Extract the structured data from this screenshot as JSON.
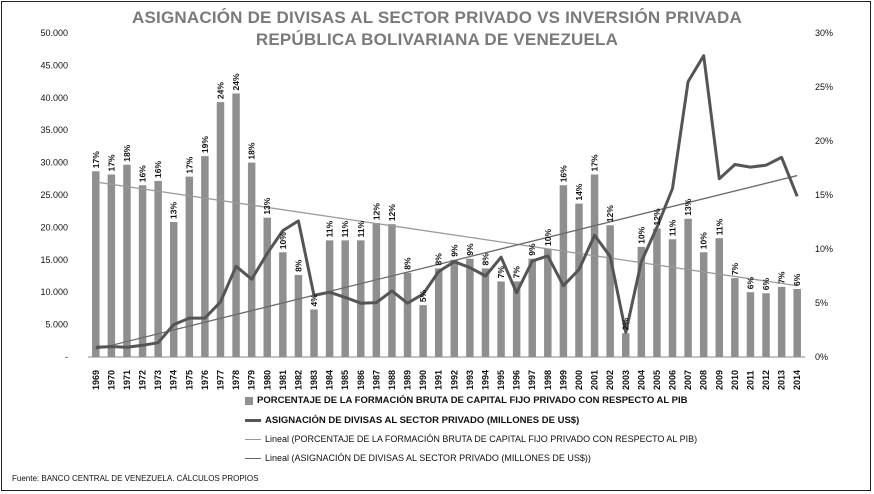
{
  "title_line1": "ASIGNACIÓN DE DIVISAS AL SECTOR PRIVADO VS INVERSIÓN PRIVADA",
  "title_line2": "REPÚBLICA BOLIVARIANA DE VENEZUELA",
  "source": "Fuente: BANCO CENTRAL DE VENEZUELA.  CÁLCULOS PROPIOS",
  "colors": {
    "bars": "#8f8f8f",
    "line": "#555555",
    "trend_bars": "#9a9a9a",
    "trend_line": "#6a6a6a"
  },
  "chart_data": {
    "type": "bar",
    "categories": [
      "1969",
      "1970",
      "1971",
      "1972",
      "1973",
      "1974",
      "1975",
      "1976",
      "1977",
      "1978",
      "1979",
      "1980",
      "1981",
      "1982",
      "1983",
      "1984",
      "1985",
      "1986",
      "1987",
      "1988",
      "1989",
      "1990",
      "1991",
      "1992",
      "1993",
      "1994",
      "1995",
      "1996",
      "1997",
      "1998",
      "1999",
      "2000",
      "2001",
      "2002",
      "2003",
      "2004",
      "2005",
      "2006",
      "2007",
      "2008",
      "2009",
      "2010",
      "2011",
      "2012",
      "2013",
      "2014"
    ],
    "left_axis": {
      "min": 0,
      "max": 50000,
      "ticks": [
        "-",
        "5.000",
        "10.000",
        "15.000",
        "20.000",
        "25.000",
        "30.000",
        "35.000",
        "40.000",
        "45.000",
        "50.000"
      ]
    },
    "right_axis": {
      "min": 0,
      "max": 30,
      "unit": "%",
      "ticks": [
        "0%",
        "5%",
        "10%",
        "15%",
        "20%",
        "25%",
        "30%"
      ]
    },
    "series": [
      {
        "name": "PORCENTAJE DE LA FORMACIÓN BRUTA DE CAPITAL FIJO PRIVADO CON RESPECTO AL PIB",
        "kind": "bar",
        "axis": "right",
        "values": [
          17.2,
          16.9,
          17.8,
          15.9,
          16.3,
          12.5,
          16.7,
          18.6,
          23.6,
          24.4,
          18.0,
          12.9,
          9.7,
          7.6,
          4.4,
          10.8,
          10.8,
          10.8,
          12.4,
          12.3,
          7.8,
          4.8,
          8.2,
          9.0,
          9.1,
          8.2,
          7.0,
          7.0,
          9.1,
          10.0,
          15.9,
          14.2,
          16.9,
          12.2,
          2.2,
          10.2,
          11.9,
          10.9,
          12.8,
          9.7,
          11.0,
          7.3,
          6.0,
          5.9,
          6.5,
          6.3
        ],
        "labels": [
          "17%",
          "17%",
          "18%",
          "16%",
          "16%",
          "13%",
          "17%",
          "19%",
          "24%",
          "24%",
          "18%",
          "13%",
          "10%",
          "8%",
          "4%",
          "11%",
          "11%",
          "11%",
          "12%",
          "12%",
          "8%",
          "5%",
          "8%",
          "9%",
          "9%",
          "8%",
          "7%",
          "7%",
          "9%",
          "10%",
          "16%",
          "14%",
          "17%",
          "12%",
          "2%",
          "10%",
          "12%",
          "11%",
          "13%",
          "10%",
          "11%",
          "7%",
          "6%",
          "6%",
          "7%",
          "6%"
        ]
      },
      {
        "name": "ASIGNACIÓN DE DIVISAS AL SECTOR PRIVADO (MILLONES DE US$)",
        "kind": "line",
        "axis": "left",
        "values": [
          1500,
          1600,
          1500,
          1800,
          2200,
          5000,
          6000,
          6000,
          8500,
          14000,
          12000,
          16000,
          19500,
          21000,
          9500,
          10000,
          9200,
          8300,
          8400,
          10200,
          8300,
          9700,
          13200,
          14700,
          13800,
          12500,
          15400,
          9900,
          14800,
          15600,
          11000,
          13500,
          18800,
          15500,
          3800,
          14700,
          20000,
          26000,
          42500,
          46500,
          27500,
          29700,
          29300,
          29600,
          30800,
          24800
        ]
      },
      {
        "name": "Lineal (PORCENTAJE DE LA FORMACIÓN BRUTA DE CAPITAL FIJO PRIVADO CON RESPECTO AL PIB)",
        "kind": "trendline",
        "axis": "right",
        "start": 16.2,
        "end": 6.6
      },
      {
        "name": "Lineal (ASIGNACIÓN DE DIVISAS AL SECTOR PRIVADO (MILLONES DE US$))",
        "kind": "trendline",
        "axis": "left",
        "start": 1200,
        "end": 28000
      }
    ]
  }
}
